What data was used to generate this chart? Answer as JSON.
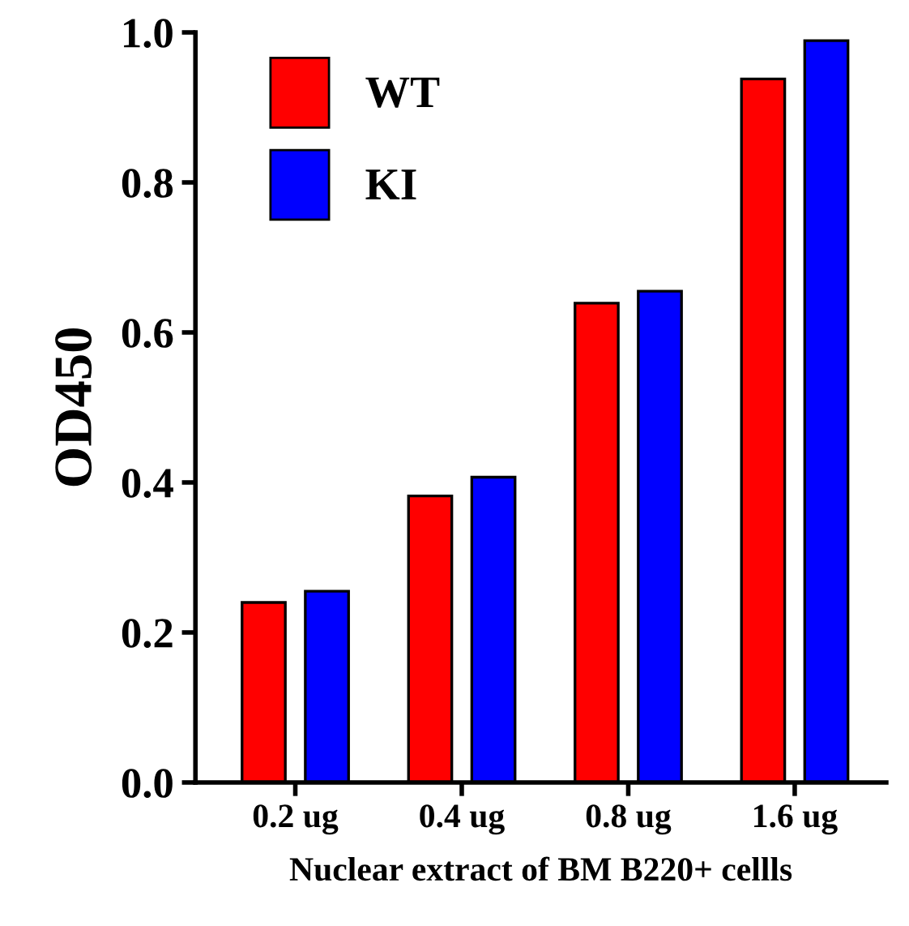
{
  "chart_data": {
    "type": "bar",
    "xlabel": "Nuclear extract of BM B220+ cellls",
    "ylabel": "OD450",
    "categories": [
      "0.2 ug",
      "0.4 ug",
      "0.8 ug",
      "1.6 ug"
    ],
    "series": [
      {
        "name": "WT",
        "color": "#ff0000",
        "values": [
          0.24,
          0.382,
          0.639,
          0.938
        ]
      },
      {
        "name": "KI",
        "color": "#0000ff",
        "values": [
          0.255,
          0.407,
          0.655,
          0.989
        ]
      }
    ],
    "ylim": [
      0,
      1.0
    ],
    "yticks": [
      {
        "value": 0,
        "label": "0.0"
      },
      {
        "value": 0.2,
        "label": "0.2"
      },
      {
        "value": 0.4,
        "label": "0.4"
      },
      {
        "value": 0.6,
        "label": "0.6"
      },
      {
        "value": 0.8,
        "label": "0.8"
      },
      {
        "value": 1.0,
        "label": "1.0"
      }
    ],
    "grid": false,
    "legend": "top left"
  }
}
